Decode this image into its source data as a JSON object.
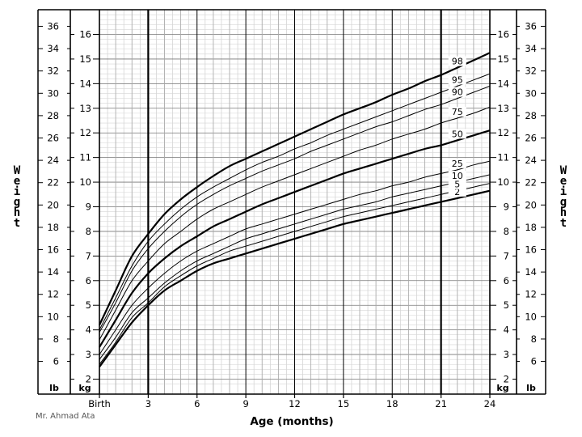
{
  "chart_data": {
    "type": "line",
    "title": "",
    "xlabel": "Age (months)",
    "ylabel_left": "Weight",
    "ylabel_right": "Weight",
    "x_ticks": [
      {
        "value": 0,
        "label": "Birth"
      },
      {
        "value": 3,
        "label": "3"
      },
      {
        "value": 6,
        "label": "6"
      },
      {
        "value": 9,
        "label": "9"
      },
      {
        "value": 12,
        "label": "12"
      },
      {
        "value": 15,
        "label": "15"
      },
      {
        "value": 18,
        "label": "18"
      },
      {
        "value": 21,
        "label": "21"
      },
      {
        "value": 24,
        "label": "24"
      }
    ],
    "xlim": [
      0,
      24
    ],
    "kg_ticks": [
      2,
      3,
      4,
      5,
      6,
      7,
      8,
      9,
      10,
      11,
      12,
      13,
      14,
      15,
      16
    ],
    "kg_unit": "kg",
    "lb_ticks": [
      6,
      8,
      10,
      12,
      14,
      16,
      18,
      20,
      22,
      24,
      26,
      28,
      30,
      32,
      34,
      36
    ],
    "lb_unit": "lb",
    "ylim_kg": [
      1.7,
      17.5
    ],
    "grid": true,
    "x": [
      0,
      1,
      2,
      3,
      4,
      5,
      6,
      7,
      8,
      9,
      10,
      11,
      12,
      13,
      14,
      15,
      16,
      17,
      18,
      19,
      20,
      21,
      22,
      23,
      24
    ],
    "series": [
      {
        "name": "2",
        "values": [
          2.5,
          3.4,
          4.3,
          5.0,
          5.6,
          6.0,
          6.4,
          6.7,
          6.9,
          7.1,
          7.3,
          7.5,
          7.7,
          7.9,
          8.1,
          8.3,
          8.45,
          8.6,
          8.75,
          8.9,
          9.05,
          9.2,
          9.35,
          9.5,
          9.65
        ]
      },
      {
        "name": "5",
        "values": [
          2.6,
          3.5,
          4.5,
          5.1,
          5.75,
          6.2,
          6.6,
          6.9,
          7.2,
          7.4,
          7.6,
          7.8,
          8.0,
          8.2,
          8.4,
          8.6,
          8.75,
          8.9,
          9.05,
          9.2,
          9.35,
          9.5,
          9.65,
          9.8,
          9.95
        ]
      },
      {
        "name": "10",
        "values": [
          2.8,
          3.7,
          4.7,
          5.3,
          5.9,
          6.4,
          6.8,
          7.1,
          7.4,
          7.7,
          7.9,
          8.1,
          8.3,
          8.5,
          8.7,
          8.9,
          9.05,
          9.2,
          9.4,
          9.55,
          9.7,
          9.85,
          10.0,
          10.15,
          10.3
        ]
      },
      {
        "name": "25",
        "values": [
          3.0,
          4.0,
          5.0,
          5.7,
          6.3,
          6.8,
          7.2,
          7.5,
          7.8,
          8.1,
          8.3,
          8.5,
          8.7,
          8.9,
          9.1,
          9.3,
          9.5,
          9.65,
          9.85,
          10.0,
          10.2,
          10.35,
          10.5,
          10.7,
          10.85
        ]
      },
      {
        "name": "50",
        "values": [
          3.3,
          4.4,
          5.5,
          6.3,
          6.9,
          7.4,
          7.8,
          8.2,
          8.5,
          8.8,
          9.1,
          9.35,
          9.6,
          9.85,
          10.1,
          10.35,
          10.55,
          10.75,
          10.95,
          11.15,
          11.35,
          11.5,
          11.7,
          11.9,
          12.1
        ]
      },
      {
        "name": "75",
        "values": [
          3.6,
          4.8,
          6.0,
          6.8,
          7.5,
          8.0,
          8.5,
          8.9,
          9.2,
          9.5,
          9.8,
          10.05,
          10.3,
          10.55,
          10.8,
          11.05,
          11.3,
          11.5,
          11.75,
          11.95,
          12.15,
          12.4,
          12.6,
          12.8,
          13.05
        ]
      },
      {
        "name": "90",
        "values": [
          3.9,
          5.1,
          6.4,
          7.3,
          8.0,
          8.6,
          9.1,
          9.5,
          9.85,
          10.15,
          10.45,
          10.7,
          10.95,
          11.25,
          11.5,
          11.75,
          12.0,
          12.25,
          12.45,
          12.7,
          12.95,
          13.15,
          13.4,
          13.65,
          13.9
        ]
      },
      {
        "name": "95",
        "values": [
          4.0,
          5.3,
          6.6,
          7.6,
          8.3,
          8.9,
          9.4,
          9.8,
          10.15,
          10.5,
          10.8,
          11.05,
          11.35,
          11.6,
          11.9,
          12.15,
          12.4,
          12.65,
          12.9,
          13.15,
          13.4,
          13.65,
          13.9,
          14.15,
          14.4
        ]
      },
      {
        "name": "98",
        "values": [
          4.2,
          5.6,
          7.0,
          7.9,
          8.7,
          9.3,
          9.8,
          10.25,
          10.65,
          10.95,
          11.25,
          11.55,
          11.85,
          12.15,
          12.45,
          12.75,
          13.0,
          13.25,
          13.55,
          13.8,
          14.1,
          14.35,
          14.65,
          14.95,
          15.25
        ]
      }
    ],
    "bold_series": [
      "2",
      "50",
      "98"
    ],
    "line_color": "#000000"
  },
  "credit": "Mr. Ahmad Ata"
}
